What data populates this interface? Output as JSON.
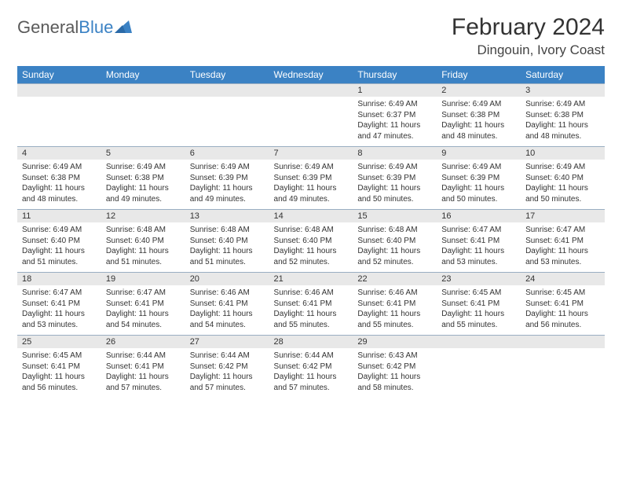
{
  "logo": {
    "first": "General",
    "second": "Blue"
  },
  "title": "February 2024",
  "subtitle": "Dingouin, Ivory Coast",
  "colors": {
    "header_bg": "#3b82c4",
    "header_text": "#ffffff",
    "daynum_bg": "#e8e8e8",
    "daynum_border": "#9aaec2",
    "text": "#333333",
    "logo_gray": "#5a5a5a",
    "logo_blue": "#3b82c4",
    "page_bg": "#ffffff"
  },
  "weekdays": [
    "Sunday",
    "Monday",
    "Tuesday",
    "Wednesday",
    "Thursday",
    "Friday",
    "Saturday"
  ],
  "weeks": [
    [
      null,
      null,
      null,
      null,
      {
        "n": "1",
        "sunrise": "6:49 AM",
        "sunset": "6:37 PM",
        "daylight": "11 hours and 47 minutes."
      },
      {
        "n": "2",
        "sunrise": "6:49 AM",
        "sunset": "6:38 PM",
        "daylight": "11 hours and 48 minutes."
      },
      {
        "n": "3",
        "sunrise": "6:49 AM",
        "sunset": "6:38 PM",
        "daylight": "11 hours and 48 minutes."
      }
    ],
    [
      {
        "n": "4",
        "sunrise": "6:49 AM",
        "sunset": "6:38 PM",
        "daylight": "11 hours and 48 minutes."
      },
      {
        "n": "5",
        "sunrise": "6:49 AM",
        "sunset": "6:38 PM",
        "daylight": "11 hours and 49 minutes."
      },
      {
        "n": "6",
        "sunrise": "6:49 AM",
        "sunset": "6:39 PM",
        "daylight": "11 hours and 49 minutes."
      },
      {
        "n": "7",
        "sunrise": "6:49 AM",
        "sunset": "6:39 PM",
        "daylight": "11 hours and 49 minutes."
      },
      {
        "n": "8",
        "sunrise": "6:49 AM",
        "sunset": "6:39 PM",
        "daylight": "11 hours and 50 minutes."
      },
      {
        "n": "9",
        "sunrise": "6:49 AM",
        "sunset": "6:39 PM",
        "daylight": "11 hours and 50 minutes."
      },
      {
        "n": "10",
        "sunrise": "6:49 AM",
        "sunset": "6:40 PM",
        "daylight": "11 hours and 50 minutes."
      }
    ],
    [
      {
        "n": "11",
        "sunrise": "6:49 AM",
        "sunset": "6:40 PM",
        "daylight": "11 hours and 51 minutes."
      },
      {
        "n": "12",
        "sunrise": "6:48 AM",
        "sunset": "6:40 PM",
        "daylight": "11 hours and 51 minutes."
      },
      {
        "n": "13",
        "sunrise": "6:48 AM",
        "sunset": "6:40 PM",
        "daylight": "11 hours and 51 minutes."
      },
      {
        "n": "14",
        "sunrise": "6:48 AM",
        "sunset": "6:40 PM",
        "daylight": "11 hours and 52 minutes."
      },
      {
        "n": "15",
        "sunrise": "6:48 AM",
        "sunset": "6:40 PM",
        "daylight": "11 hours and 52 minutes."
      },
      {
        "n": "16",
        "sunrise": "6:47 AM",
        "sunset": "6:41 PM",
        "daylight": "11 hours and 53 minutes."
      },
      {
        "n": "17",
        "sunrise": "6:47 AM",
        "sunset": "6:41 PM",
        "daylight": "11 hours and 53 minutes."
      }
    ],
    [
      {
        "n": "18",
        "sunrise": "6:47 AM",
        "sunset": "6:41 PM",
        "daylight": "11 hours and 53 minutes."
      },
      {
        "n": "19",
        "sunrise": "6:47 AM",
        "sunset": "6:41 PM",
        "daylight": "11 hours and 54 minutes."
      },
      {
        "n": "20",
        "sunrise": "6:46 AM",
        "sunset": "6:41 PM",
        "daylight": "11 hours and 54 minutes."
      },
      {
        "n": "21",
        "sunrise": "6:46 AM",
        "sunset": "6:41 PM",
        "daylight": "11 hours and 55 minutes."
      },
      {
        "n": "22",
        "sunrise": "6:46 AM",
        "sunset": "6:41 PM",
        "daylight": "11 hours and 55 minutes."
      },
      {
        "n": "23",
        "sunrise": "6:45 AM",
        "sunset": "6:41 PM",
        "daylight": "11 hours and 55 minutes."
      },
      {
        "n": "24",
        "sunrise": "6:45 AM",
        "sunset": "6:41 PM",
        "daylight": "11 hours and 56 minutes."
      }
    ],
    [
      {
        "n": "25",
        "sunrise": "6:45 AM",
        "sunset": "6:41 PM",
        "daylight": "11 hours and 56 minutes."
      },
      {
        "n": "26",
        "sunrise": "6:44 AM",
        "sunset": "6:41 PM",
        "daylight": "11 hours and 57 minutes."
      },
      {
        "n": "27",
        "sunrise": "6:44 AM",
        "sunset": "6:42 PM",
        "daylight": "11 hours and 57 minutes."
      },
      {
        "n": "28",
        "sunrise": "6:44 AM",
        "sunset": "6:42 PM",
        "daylight": "11 hours and 57 minutes."
      },
      {
        "n": "29",
        "sunrise": "6:43 AM",
        "sunset": "6:42 PM",
        "daylight": "11 hours and 58 minutes."
      },
      null,
      null
    ]
  ],
  "labels": {
    "sunrise": "Sunrise: ",
    "sunset": "Sunset: ",
    "daylight": "Daylight: "
  }
}
